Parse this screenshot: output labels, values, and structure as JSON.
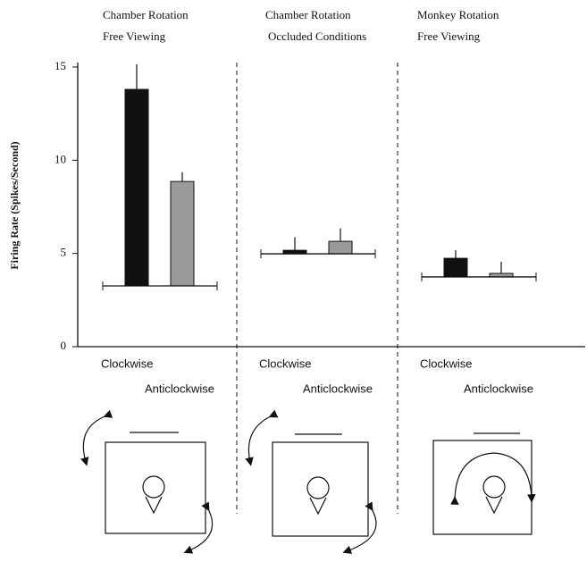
{
  "chart_data": {
    "type": "bar",
    "ylabel": "Firing Rate (Spikes/Second)",
    "ylim": [
      0,
      15
    ],
    "yticks": [
      0,
      5,
      10,
      15
    ],
    "panels": [
      {
        "title": "Chamber Rotation",
        "subtitle": "Free Viewing",
        "baseline": 3.26,
        "categories": [
          "Clockwise",
          "Anticlockwise"
        ],
        "values": [
          13.8,
          8.86
        ],
        "errors": [
          1.35,
          0.5
        ],
        "colors": [
          "#111111",
          "#9a9a9a"
        ]
      },
      {
        "title": "Chamber Rotation",
        "subtitle": "Occluded Conditions",
        "baseline": 4.98,
        "categories": [
          "Clockwise",
          "Anticlockwise"
        ],
        "values": [
          5.17,
          5.65
        ],
        "errors": [
          0.7,
          0.7
        ],
        "colors": [
          "#111111",
          "#9a9a9a"
        ]
      },
      {
        "title": "Monkey Rotation",
        "subtitle": "Free Viewing",
        "baseline": 3.74,
        "categories": [
          "Clockwise",
          "Anticlockwise"
        ],
        "values": [
          4.74,
          3.93
        ],
        "errors": [
          0.43,
          0.62
        ],
        "colors": [
          "#111111",
          "#9a9a9a"
        ]
      }
    ]
  }
}
